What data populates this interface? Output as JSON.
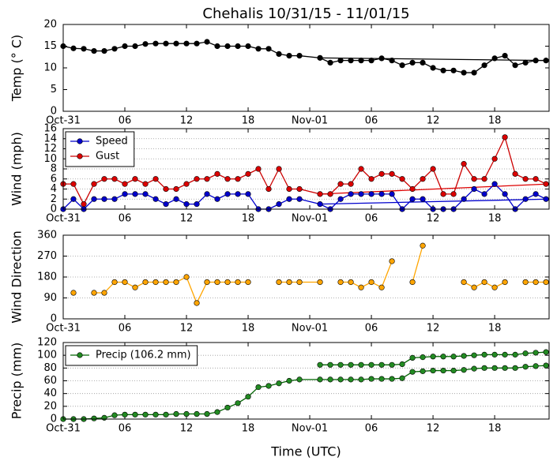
{
  "chart_data": [
    {
      "type": "line",
      "title": "Chehalis 10/31/15 - 11/01/15",
      "ylabel": "Temp (° C)",
      "x": [
        0,
        1,
        2,
        3,
        4,
        5,
        6,
        7,
        8,
        9,
        10,
        11,
        12,
        13,
        14,
        15,
        16,
        17,
        18,
        19,
        20,
        21,
        22,
        23,
        25,
        26,
        27,
        28,
        29,
        30,
        31,
        32,
        33,
        34,
        35,
        36,
        37,
        38,
        39,
        40,
        41,
        42,
        43,
        44,
        45,
        46,
        47
      ],
      "xlim": [
        0,
        47.3
      ],
      "xticks": [
        {
          "value": 0,
          "label": "Oct-31"
        },
        {
          "value": 6,
          "label": "06"
        },
        12,
        18,
        {
          "value": 24,
          "label": "Nov-01"
        },
        {
          "value": 30,
          "label": "06"
        },
        {
          "value": 36,
          "label": "12"
        },
        {
          "value": 42,
          "label": "18"
        }
      ],
      "ylim": [
        0,
        20
      ],
      "yticks": [
        0,
        5,
        10,
        15,
        20
      ],
      "grid": false,
      "series": [
        {
          "color": "#000000",
          "marker_color": "#000000",
          "values": [
            15,
            14.5,
            14.4,
            13.9,
            13.9,
            14.4,
            15,
            15,
            15.5,
            15.6,
            15.6,
            15.6,
            15.6,
            15.6,
            16,
            15,
            15,
            15,
            15,
            14.4,
            14.4,
            13.2,
            12.8,
            12.8,
            12.3,
            11.2,
            11.7,
            11.7,
            11.7,
            11.7,
            12.2,
            11.7,
            10.6,
            11.2,
            11.2,
            10,
            9.4,
            9.4,
            8.9,
            8.9,
            10.6,
            12.2,
            12.8,
            10.6,
            11.2,
            11.7,
            11.7
          ]
        }
      ],
      "trend": [
        {
          "color": "#000000",
          "x": [
            25,
            47.3
          ],
          "values": [
            12.3,
            11.7
          ]
        }
      ]
    },
    {
      "type": "line",
      "ylabel": "Wind (mph)",
      "legend": "upper left",
      "x": [
        0,
        1,
        2,
        3,
        4,
        5,
        6,
        7,
        8,
        9,
        10,
        11,
        12,
        13,
        14,
        15,
        16,
        17,
        18,
        19,
        20,
        21,
        22,
        23,
        25,
        26,
        27,
        28,
        29,
        30,
        31,
        32,
        33,
        34,
        35,
        36,
        37,
        38,
        39,
        40,
        41,
        42,
        43,
        44,
        45,
        46,
        47
      ],
      "xlim": [
        0,
        47.3
      ],
      "xticks": [
        {
          "value": 0,
          "label": "Oct-31"
        },
        {
          "value": 6,
          "label": "06"
        },
        12,
        18,
        {
          "value": 24,
          "label": "Nov-01"
        },
        {
          "value": 30,
          "label": "06"
        },
        {
          "value": 36,
          "label": "12"
        },
        {
          "value": 42,
          "label": "18"
        }
      ],
      "ylim": [
        0,
        16
      ],
      "yticks": [
        0,
        2,
        4,
        6,
        8,
        10,
        12,
        14,
        16
      ],
      "grid": true,
      "series": [
        {
          "name": "Speed",
          "color": "#0000cc",
          "marker_color": "#0000cc",
          "values": [
            0,
            2,
            0,
            2,
            2,
            2,
            3,
            3,
            3,
            2,
            1,
            2,
            1,
            1,
            3,
            2,
            3,
            3,
            3,
            0,
            0,
            1,
            2,
            2,
            1,
            0,
            2,
            3,
            3,
            3,
            3,
            3,
            0,
            2,
            2,
            0,
            0,
            0,
            2,
            4,
            3,
            5,
            3,
            0,
            2,
            3,
            2
          ]
        },
        {
          "name": "Gust",
          "color": "#cc0000",
          "marker_color": "#dd0000",
          "values": [
            5,
            5,
            1,
            5,
            6,
            6,
            5,
            6,
            5,
            6,
            4,
            4,
            5,
            6,
            6,
            7,
            6,
            6,
            7,
            8,
            4,
            8,
            4,
            4,
            3,
            3,
            5,
            5,
            8,
            6,
            7,
            7,
            6,
            4,
            6,
            8,
            3,
            3,
            9,
            6,
            6,
            10,
            14.3,
            7,
            6,
            6,
            5
          ]
        }
      ],
      "trend": [
        {
          "color": "#0000cc",
          "x": [
            25,
            47.3
          ],
          "values": [
            1,
            2
          ]
        },
        {
          "color": "#dd0000",
          "x": [
            25,
            47.3
          ],
          "values": [
            3,
            5
          ]
        }
      ]
    },
    {
      "type": "line",
      "ylabel": "Wind Direction",
      "x": [
        0,
        1,
        2,
        3,
        4,
        5,
        6,
        7,
        8,
        9,
        10,
        11,
        12,
        13,
        14,
        15,
        16,
        17,
        18,
        19,
        20,
        21,
        22,
        23,
        25,
        26,
        27,
        28,
        29,
        30,
        31,
        32,
        33,
        34,
        35,
        36,
        37,
        38,
        39,
        40,
        41,
        42,
        43,
        44,
        45,
        46,
        47
      ],
      "xlim": [
        0,
        47.3
      ],
      "xticks": [
        {
          "value": 0,
          "label": "Oct-31"
        },
        {
          "value": 6,
          "label": "06"
        },
        12,
        18,
        {
          "value": 24,
          "label": "Nov-01"
        },
        {
          "value": 30,
          "label": "06"
        },
        {
          "value": 36,
          "label": "12"
        },
        {
          "value": 42,
          "label": "18"
        }
      ],
      "ylim": [
        0,
        360
      ],
      "yticks": [
        0,
        90,
        180,
        270,
        360
      ],
      "grid": true,
      "series": [
        {
          "color": "#ffa500",
          "marker_color": "#ffa500",
          "values": [
            null,
            112,
            null,
            112,
            112,
            158,
            158,
            135,
            158,
            158,
            158,
            158,
            180,
            68,
            158,
            158,
            158,
            158,
            158,
            null,
            null,
            158,
            158,
            158,
            158,
            null,
            158,
            158,
            135,
            158,
            135,
            248,
            null,
            158,
            315,
            null,
            null,
            null,
            158,
            135,
            158,
            135,
            158,
            null,
            158,
            158,
            158
          ]
        }
      ]
    },
    {
      "type": "line",
      "ylabel": "Precip (mm)",
      "xlabel": "Time (UTC)",
      "legend": "upper left",
      "x": [
        0,
        1,
        2,
        3,
        4,
        5,
        6,
        7,
        8,
        9,
        10,
        11,
        12,
        13,
        14,
        15,
        16,
        17,
        18,
        19,
        20,
        21,
        22,
        23,
        25,
        26,
        27,
        28,
        29,
        30,
        31,
        32,
        33,
        34,
        35,
        36,
        37,
        38,
        39,
        40,
        41,
        42,
        43,
        44,
        45,
        46,
        47
      ],
      "xlim": [
        0,
        47.3
      ],
      "xticks": [
        {
          "value": 0,
          "label": "Oct-31"
        },
        {
          "value": 6,
          "label": "06"
        },
        12,
        18,
        {
          "value": 24,
          "label": "Nov-01"
        },
        {
          "value": 30,
          "label": "06"
        },
        {
          "value": 36,
          "label": "12"
        },
        {
          "value": 42,
          "label": "18"
        }
      ],
      "ylim": [
        0,
        120
      ],
      "yticks": [
        0,
        20,
        40,
        60,
        80,
        100,
        120
      ],
      "grid": true,
      "series": [
        {
          "name": "Precip (106.2 mm)",
          "color": "#006400",
          "marker_color": "#228b22",
          "values": [
            0,
            0,
            0,
            1,
            2,
            6,
            7,
            7,
            7,
            7,
            7,
            8,
            8,
            8,
            8,
            11,
            18,
            25,
            35,
            50,
            52,
            56,
            60,
            62,
            62,
            62,
            62,
            62,
            62,
            63,
            63,
            63,
            64,
            74,
            75,
            76,
            76,
            76,
            77,
            79,
            80,
            80,
            80,
            80,
            82,
            83,
            84
          ]
        },
        {
          "color": "#006400",
          "marker_color": "#228b22",
          "values": [
            null,
            null,
            null,
            null,
            null,
            null,
            null,
            null,
            null,
            null,
            null,
            null,
            null,
            null,
            null,
            null,
            null,
            null,
            null,
            null,
            null,
            null,
            null,
            null,
            85,
            85,
            85,
            85,
            85,
            85,
            85,
            85,
            86,
            96,
            97,
            98,
            98,
            98,
            99,
            100,
            101,
            101,
            101,
            101,
            103,
            104,
            105
          ]
        }
      ]
    }
  ]
}
